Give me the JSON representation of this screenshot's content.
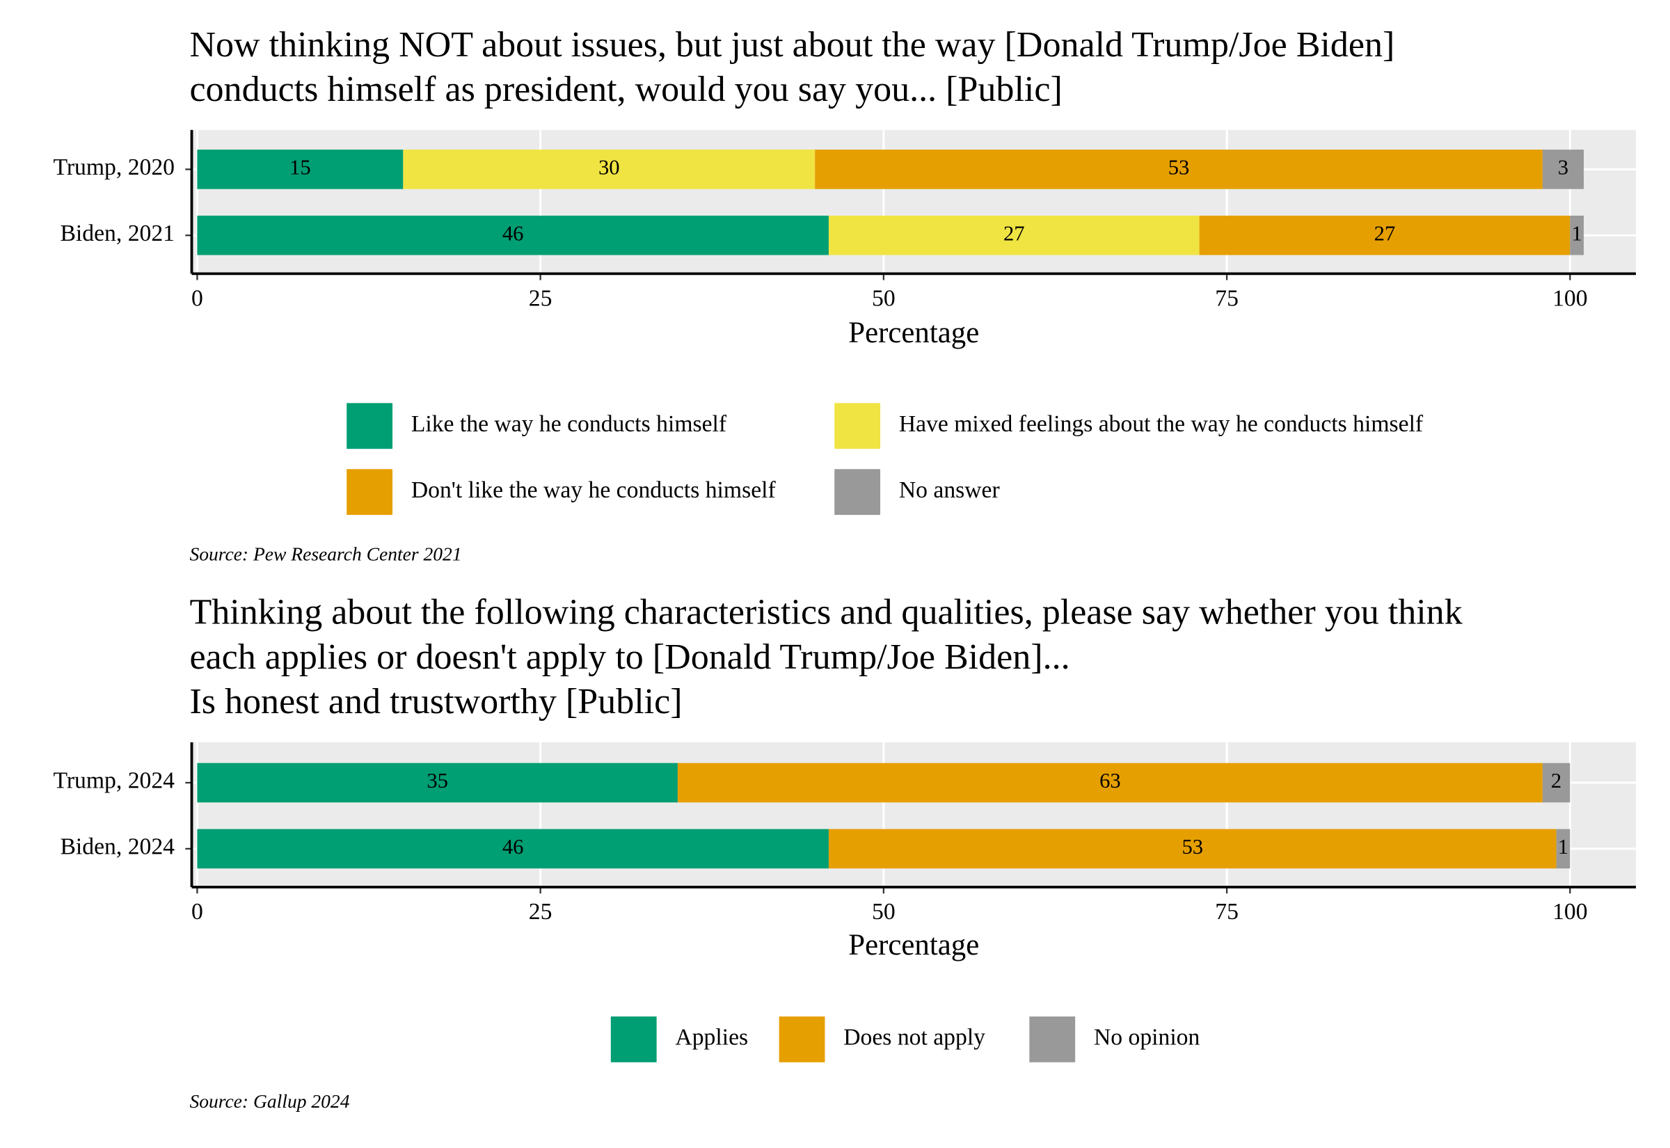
{
  "chart_data": [
    {
      "type": "bar",
      "orientation": "horizontal",
      "stacked": true,
      "title": [
        "Now thinking NOT about issues, but just about the way [Donald Trump/Joe Biden]",
        " conducts himself as president, would you say you... [Public]"
      ],
      "categories": [
        "Trump, 2020",
        "Biden, 2021"
      ],
      "series": [
        {
          "name": "Like the way he conducts himself",
          "color": "#009E73",
          "values": [
            15,
            46
          ]
        },
        {
          "name": "Have mixed feelings about the way he conducts himself",
          "color": "#F0E442",
          "values": [
            30,
            27
          ]
        },
        {
          "name": "Don't like the way he conducts himself",
          "color": "#E69F00",
          "values": [
            53,
            27
          ]
        },
        {
          "name": "No answer",
          "color": "#999999",
          "values": [
            3,
            1
          ]
        }
      ],
      "xlabel": "Percentage",
      "xlim": [
        -0.4,
        104.8
      ],
      "xticks": [
        0,
        25,
        50,
        75,
        100
      ],
      "grid": true,
      "source": "Source: Pew Research Center 2021"
    },
    {
      "type": "bar",
      "orientation": "horizontal",
      "stacked": true,
      "title": [
        "Thinking about the following characteristics and qualities, please say whether you think",
        "each applies or doesn't apply to [Donald Trump/Joe Biden]...",
        "Is honest and trustworthy [Public]"
      ],
      "categories": [
        "Trump, 2024",
        "Biden, 2024"
      ],
      "series": [
        {
          "name": "Applies",
          "color": "#009E73",
          "values": [
            35,
            46
          ]
        },
        {
          "name": "Does not apply",
          "color": "#E69F00",
          "values": [
            63,
            53
          ]
        },
        {
          "name": "No opinion",
          "color": "#999999",
          "values": [
            2,
            1
          ]
        }
      ],
      "xlabel": "Percentage",
      "xlim": [
        -0.4,
        104.8
      ],
      "xticks": [
        0,
        25,
        50,
        75,
        100
      ],
      "grid": true,
      "source": "Source: Gallup 2024"
    }
  ]
}
